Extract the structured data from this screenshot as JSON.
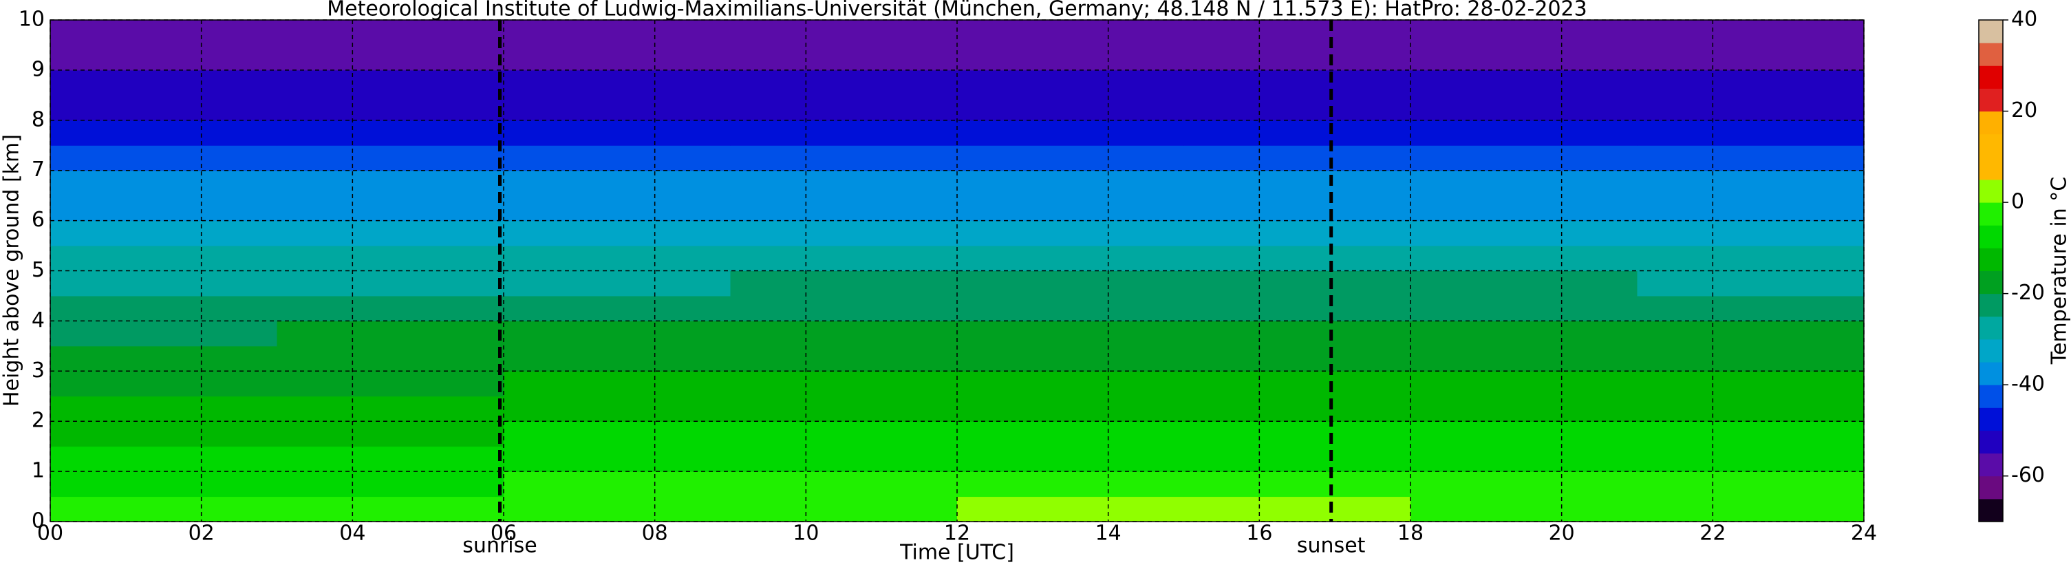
{
  "chart_data": {
    "type": "heatmap",
    "title": "Meteorological Institute of Ludwig-Maximilians-Universität (München, Germany; 48.148 N / 11.573 E):    HatPro: 28-02-2023",
    "xlabel": "Time [UTC]",
    "ylabel": "Height above ground [km]",
    "xlim": [
      0,
      24
    ],
    "ylim": [
      0,
      10
    ],
    "xticks": [
      {
        "value": 0,
        "label": "00"
      },
      {
        "value": 2,
        "label": "02"
      },
      {
        "value": 4,
        "label": "04"
      },
      {
        "value": 6,
        "label": "06"
      },
      {
        "value": 8,
        "label": "08"
      },
      {
        "value": 10,
        "label": "10"
      },
      {
        "value": 12,
        "label": "12"
      },
      {
        "value": 14,
        "label": "14"
      },
      {
        "value": 16,
        "label": "16"
      },
      {
        "value": 18,
        "label": "18"
      },
      {
        "value": 20,
        "label": "20"
      },
      {
        "value": 22,
        "label": "22"
      },
      {
        "value": 24,
        "label": "24"
      }
    ],
    "yticks": [
      0,
      1,
      2,
      3,
      4,
      5,
      6,
      7,
      8,
      9,
      10
    ],
    "grid": true,
    "x_edges": [
      0,
      3,
      6,
      9,
      12,
      15,
      18,
      21,
      24
    ],
    "y_edges": [
      0,
      0.5,
      1,
      1.5,
      2,
      2.5,
      3,
      3.5,
      4,
      4.5,
      5,
      5.5,
      6,
      6.5,
      7,
      7.5,
      8,
      8.5,
      9,
      9.5,
      10
    ],
    "values": [
      [
        -3,
        -3,
        -2.5,
        -1.5,
        0.5,
        1,
        -0.5,
        -1.5
      ],
      [
        -5.5,
        -5.5,
        -5,
        -4.5,
        -3,
        -2.5,
        -3.5,
        -4
      ],
      [
        -8,
        -8,
        -7.5,
        -7,
        -6,
        -6,
        -6.5,
        -7
      ],
      [
        -10.5,
        -10.5,
        -10,
        -9.5,
        -9,
        -9,
        -9.5,
        -10
      ],
      [
        -13,
        -13,
        -12.5,
        -12,
        -11.5,
        -11.5,
        -12,
        -12.5
      ],
      [
        -15.5,
        -15.5,
        -15,
        -14.5,
        -14,
        -14,
        -14.5,
        -15
      ],
      [
        -17.5,
        -17.5,
        -17,
        -16.5,
        -16,
        -16,
        -16.5,
        -17
      ],
      [
        -20.5,
        -20,
        -19,
        -18.5,
        -18,
        -18,
        -18.5,
        -19
      ],
      [
        -23,
        -22.5,
        -21.5,
        -21,
        -20.5,
        -20.5,
        -21,
        -21.5
      ],
      [
        -26,
        -26,
        -25.5,
        -25,
        -24.5,
        -24.5,
        -25,
        -25.5
      ],
      [
        -29,
        -29,
        -29,
        -28.5,
        -28,
        -28,
        -28.5,
        -29
      ],
      [
        -33,
        -33,
        -33,
        -32.5,
        -32,
        -32,
        -32.5,
        -33
      ],
      [
        -36,
        -36,
        -36,
        -36,
        -35.5,
        -35.5,
        -36,
        -36
      ],
      [
        -39,
        -39,
        -39,
        -39,
        -38.5,
        -38.5,
        -39,
        -39
      ],
      [
        -44,
        -44,
        -44,
        -44,
        -43.5,
        -43.5,
        -44,
        -44
      ],
      [
        -49,
        -49,
        -49,
        -49,
        -48.5,
        -48.5,
        -49,
        -49
      ],
      [
        -52,
        -52,
        -52,
        -52,
        -52,
        -52,
        -52,
        -52
      ],
      [
        -54,
        -54,
        -54,
        -54,
        -54,
        -54,
        -54,
        -54
      ],
      [
        -56,
        -56,
        -56,
        -56,
        -56,
        -56,
        -56,
        -56
      ],
      [
        -58,
        -58,
        -58,
        -58,
        -58,
        -58,
        -58,
        -58
      ]
    ],
    "annotations": [
      {
        "x": 5.95,
        "label": "sunrise"
      },
      {
        "x": 16.95,
        "label": "sunset"
      }
    ],
    "colorbar": {
      "label": "Temperature in °C",
      "lim": [
        -70,
        40
      ],
      "ticks": [
        -60,
        -40,
        -20,
        0,
        20,
        40
      ],
      "levels": [
        -70,
        -65,
        -60,
        -55,
        -50,
        -45,
        -40,
        -35,
        -30,
        -25,
        -20,
        -15,
        -10,
        -5,
        0,
        5,
        10,
        15,
        20,
        25,
        30,
        35,
        40
      ],
      "colors": [
        "#12001c",
        "#6a0a80",
        "#5a0ca8",
        "#2000c0",
        "#0010d8",
        "#0050e8",
        "#0090e0",
        "#00a6c8",
        "#00a8a0",
        "#009a62",
        "#00a020",
        "#00b800",
        "#00d800",
        "#20f000",
        "#90ff00",
        "#ffb800",
        "#ffb800",
        "#ffb000",
        "#e02020",
        "#e00000",
        "#e06040",
        "#d8c0a0"
      ]
    }
  }
}
